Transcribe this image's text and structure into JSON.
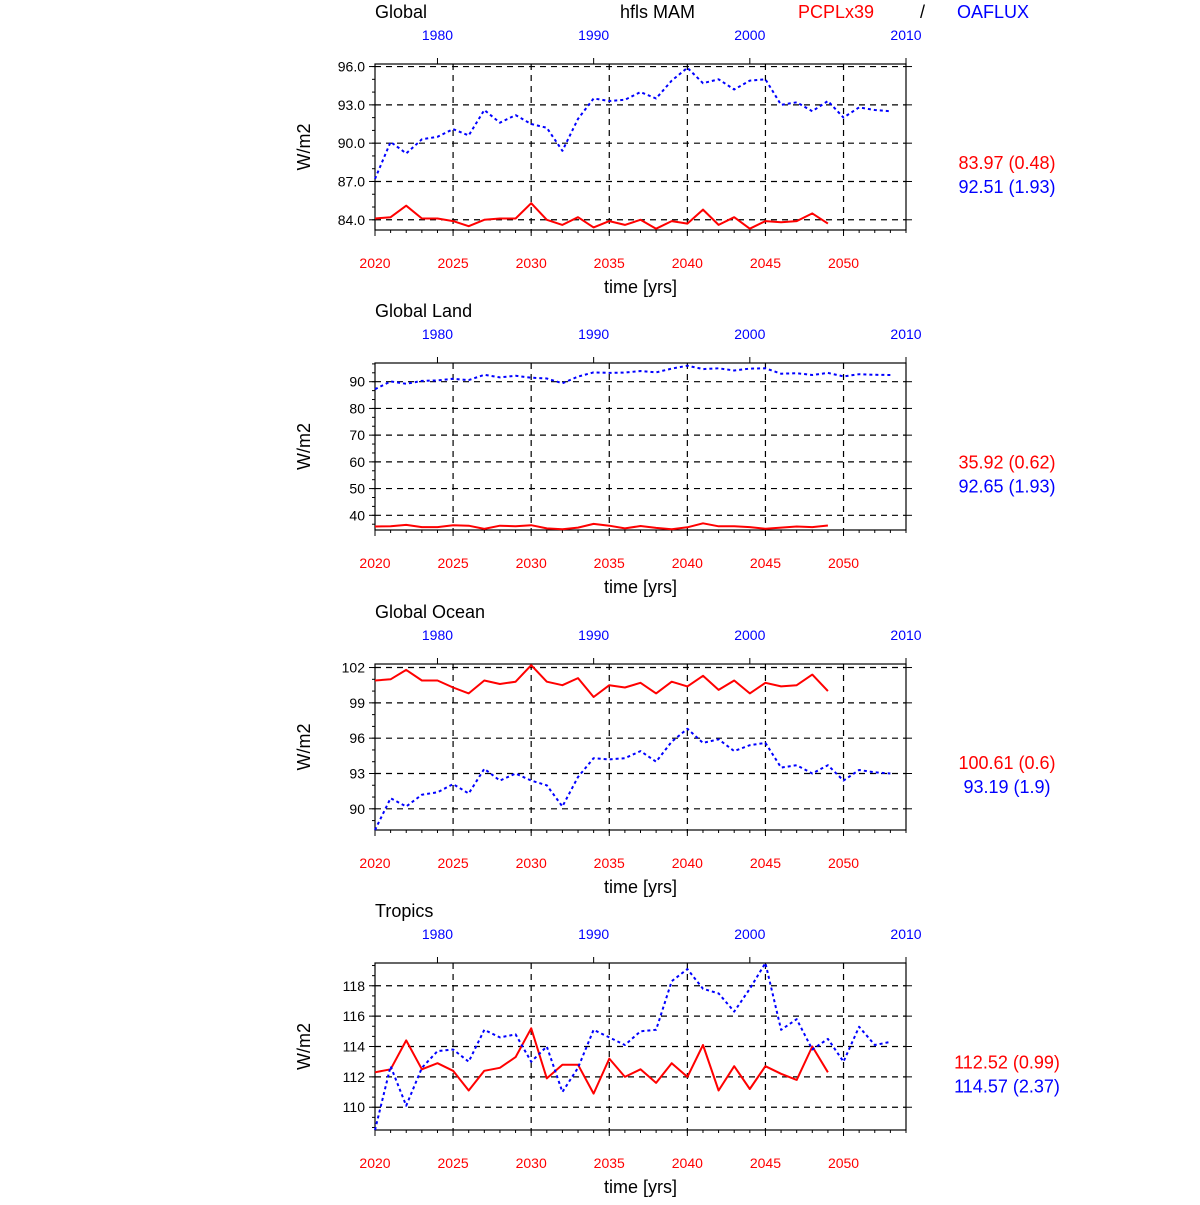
{
  "header": {
    "region_label": "Global",
    "variable_label": "hfls MAM",
    "model_label": "PCPLx39",
    "separator": "/",
    "obs_label": "OAFLUX"
  },
  "colors": {
    "model": "#ff0000",
    "obs": "#0000ff",
    "text": "#000000"
  },
  "chart_data": [
    {
      "type": "line",
      "title": "",
      "xlabel": "time [yrs]",
      "ylabel": "W/m2",
      "xlim": [
        2020,
        2054
      ],
      "ylim": [
        83.2,
        96.2
      ],
      "yticks": [
        84,
        87,
        90,
        93,
        96
      ],
      "ytick_labels": [
        "84.0",
        "87.0",
        "90.0",
        "93.0",
        "96.0"
      ],
      "xticks": [
        2020,
        2025,
        2030,
        2035,
        2040,
        2045,
        2050
      ],
      "xtick_labels": [
        "2020",
        "2025",
        "2030",
        "2035",
        "2040",
        "2045",
        "2050"
      ],
      "top_axis_ticks": [
        1980,
        1990,
        2000,
        2010
      ],
      "top_axis_labels": [
        "1980",
        "1990",
        "2000",
        "2010"
      ],
      "grid": true,
      "series": [
        {
          "name": "PCPLx39",
          "color": "#ff0000",
          "style": "solid",
          "x_start": 2020,
          "values": [
            84.1,
            84.2,
            85.1,
            84.1,
            84.1,
            83.9,
            83.5,
            84.0,
            84.1,
            84.1,
            85.3,
            84.0,
            83.6,
            84.2,
            83.4,
            83.9,
            83.6,
            84.0,
            83.3,
            83.9,
            83.7,
            84.8,
            83.6,
            84.2,
            83.3,
            83.9,
            83.8,
            83.9,
            84.5,
            83.7
          ]
        },
        {
          "name": "OAFLUX",
          "color": "#0000ff",
          "style": "dotted",
          "x_start": 2020,
          "values": [
            87.2,
            90.1,
            89.2,
            90.3,
            90.5,
            91.1,
            90.6,
            92.6,
            91.6,
            92.2,
            91.5,
            91.2,
            89.4,
            91.9,
            93.5,
            93.3,
            93.4,
            94.0,
            93.5,
            94.9,
            95.9,
            94.7,
            95.0,
            94.2,
            94.9,
            95.0,
            93.0,
            93.2,
            92.5,
            93.3,
            92.0,
            92.8,
            92.6,
            92.5
          ]
        }
      ],
      "stats": [
        {
          "text": "83.97 (0.48)",
          "color": "#ff0000"
        },
        {
          "text": "92.51 (1.93)",
          "color": "#0000ff"
        }
      ]
    },
    {
      "type": "line",
      "title": "Global Land",
      "xlabel": "time [yrs]",
      "ylabel": "W/m2",
      "xlim": [
        2020,
        2054
      ],
      "ylim": [
        34.5,
        97
      ],
      "yticks": [
        40,
        50,
        60,
        70,
        80,
        90
      ],
      "ytick_labels": [
        "40",
        "50",
        "60",
        "70",
        "80",
        "90"
      ],
      "xticks": [
        2020,
        2025,
        2030,
        2035,
        2040,
        2045,
        2050
      ],
      "xtick_labels": [
        "2020",
        "2025",
        "2030",
        "2035",
        "2040",
        "2045",
        "2050"
      ],
      "top_axis_ticks": [
        1980,
        1990,
        2000,
        2010
      ],
      "top_axis_labels": [
        "1980",
        "1990",
        "2000",
        "2010"
      ],
      "grid": true,
      "series": [
        {
          "name": "PCPLx39",
          "color": "#ff0000",
          "style": "solid",
          "x_start": 2020,
          "values": [
            35.8,
            35.9,
            36.4,
            35.6,
            35.6,
            36.3,
            36.1,
            34.9,
            36.1,
            35.9,
            36.3,
            35.1,
            34.8,
            35.4,
            36.8,
            36.1,
            35.1,
            36.0,
            35.3,
            34.8,
            35.5,
            37.0,
            35.9,
            35.9,
            35.6,
            35.0,
            35.4,
            35.8,
            35.6,
            36.2
          ]
        },
        {
          "name": "OAFLUX",
          "color": "#0000ff",
          "style": "dotted",
          "x_start": 2020,
          "values": [
            87.2,
            90.1,
            89.2,
            90.3,
            90.5,
            91.1,
            90.6,
            92.6,
            91.6,
            92.2,
            91.5,
            91.2,
            89.4,
            91.9,
            93.5,
            93.3,
            93.4,
            94.0,
            93.5,
            94.9,
            96.0,
            94.7,
            95.0,
            94.2,
            94.9,
            95.0,
            93.0,
            93.2,
            92.5,
            93.3,
            92.0,
            92.8,
            92.6,
            92.5
          ]
        }
      ],
      "stats": [
        {
          "text": "35.92 (0.62)",
          "color": "#ff0000"
        },
        {
          "text": "92.65 (1.93)",
          "color": "#0000ff"
        }
      ]
    },
    {
      "type": "line",
      "title": "Global Ocean",
      "xlabel": "time [yrs]",
      "ylabel": "W/m2",
      "xlim": [
        2020,
        2054
      ],
      "ylim": [
        88.2,
        102.3
      ],
      "yticks": [
        90,
        93,
        96,
        99,
        102
      ],
      "ytick_labels": [
        "90",
        "93",
        "96",
        "99",
        "102"
      ],
      "xticks": [
        2020,
        2025,
        2030,
        2035,
        2040,
        2045,
        2050
      ],
      "xtick_labels": [
        "2020",
        "2025",
        "2030",
        "2035",
        "2040",
        "2045",
        "2050"
      ],
      "top_axis_ticks": [
        1980,
        1990,
        2000,
        2010
      ],
      "top_axis_labels": [
        "1980",
        "1990",
        "2000",
        "2010"
      ],
      "grid": true,
      "series": [
        {
          "name": "PCPLx39",
          "color": "#ff0000",
          "style": "solid",
          "x_start": 2020,
          "values": [
            100.9,
            101.0,
            101.8,
            100.9,
            100.9,
            100.3,
            99.8,
            100.9,
            100.6,
            100.8,
            102.2,
            100.8,
            100.5,
            101.1,
            99.5,
            100.5,
            100.3,
            100.7,
            99.8,
            100.8,
            100.4,
            101.3,
            100.1,
            100.9,
            99.8,
            100.7,
            100.4,
            100.5,
            101.4,
            100.0
          ]
        },
        {
          "name": "OAFLUX",
          "color": "#0000ff",
          "style": "dotted",
          "x_start": 2020,
          "values": [
            88.2,
            90.9,
            90.2,
            91.2,
            91.4,
            92.1,
            91.3,
            93.4,
            92.4,
            93.0,
            92.4,
            92.0,
            90.2,
            92.7,
            94.3,
            94.2,
            94.3,
            94.9,
            94.0,
            95.7,
            96.8,
            95.6,
            95.9,
            94.9,
            95.4,
            95.6,
            93.5,
            93.7,
            93.0,
            93.7,
            92.4,
            93.3,
            93.1,
            93.0
          ]
        }
      ],
      "stats": [
        {
          "text": "100.61 (0.6)",
          "color": "#ff0000"
        },
        {
          "text": "93.19 (1.9)",
          "color": "#0000ff"
        }
      ]
    },
    {
      "type": "line",
      "title": "Tropics",
      "xlabel": "time [yrs]",
      "ylabel": "W/m2",
      "xlim": [
        2020,
        2054
      ],
      "ylim": [
        108.5,
        119.5
      ],
      "yticks": [
        110,
        112,
        114,
        116,
        118
      ],
      "ytick_labels": [
        "110",
        "112",
        "114",
        "116",
        "118"
      ],
      "xticks": [
        2020,
        2025,
        2030,
        2035,
        2040,
        2045,
        2050
      ],
      "xtick_labels": [
        "2020",
        "2025",
        "2030",
        "2035",
        "2040",
        "2045",
        "2050"
      ],
      "top_axis_ticks": [
        1980,
        1990,
        2000,
        2010
      ],
      "top_axis_labels": [
        "1980",
        "1990",
        "2000",
        "2010"
      ],
      "grid": true,
      "series": [
        {
          "name": "PCPLx39",
          "color": "#ff0000",
          "style": "solid",
          "x_start": 2020,
          "values": [
            112.3,
            112.5,
            114.4,
            112.5,
            112.9,
            112.4,
            111.1,
            112.4,
            112.6,
            113.3,
            115.2,
            111.9,
            112.8,
            112.8,
            110.9,
            113.2,
            112.0,
            112.5,
            111.6,
            112.9,
            112.0,
            114.1,
            111.1,
            112.7,
            111.2,
            112.7,
            112.2,
            111.8,
            114.0,
            112.3
          ]
        },
        {
          "name": "OAFLUX",
          "color": "#0000ff",
          "style": "dotted",
          "x_start": 2020,
          "values": [
            108.5,
            112.7,
            110.1,
            112.6,
            113.7,
            113.8,
            113.0,
            115.1,
            114.6,
            114.8,
            113.0,
            114.0,
            111.0,
            112.6,
            115.1,
            114.6,
            114.1,
            115.0,
            115.1,
            118.3,
            119.1,
            117.8,
            117.5,
            116.3,
            117.8,
            119.5,
            115.1,
            115.8,
            113.8,
            114.5,
            113.0,
            115.3,
            114.1,
            114.3
          ]
        }
      ],
      "stats": [
        {
          "text": "112.52 (0.99)",
          "color": "#ff0000"
        },
        {
          "text": "114.57 (2.37)",
          "color": "#0000ff"
        }
      ]
    }
  ]
}
